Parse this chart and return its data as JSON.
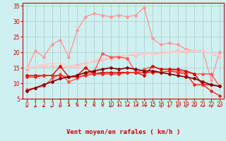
{
  "bg_color": "#cff0f0",
  "grid_color": "#b0c8c8",
  "xlabel": "Vent moyen/en rafales ( km/h )",
  "xlim": [
    -0.5,
    23.5
  ],
  "ylim": [
    5,
    36
  ],
  "yticks": [
    5,
    10,
    15,
    20,
    25,
    30,
    35
  ],
  "xticks": [
    0,
    1,
    2,
    3,
    4,
    5,
    6,
    7,
    8,
    9,
    10,
    11,
    12,
    13,
    14,
    15,
    16,
    17,
    18,
    19,
    20,
    21,
    22,
    23
  ],
  "lines": [
    {
      "x": [
        0,
        1,
        2,
        3,
        4,
        5,
        6,
        7,
        8,
        9,
        10,
        11,
        12,
        13,
        14,
        15,
        16,
        17,
        18,
        19,
        20,
        21,
        22,
        23
      ],
      "y": [
        14.5,
        15.5,
        15.5,
        15.5,
        15.0,
        15.5,
        16.0,
        16.5,
        17.0,
        17.5,
        18.0,
        18.5,
        19.0,
        19.0,
        19.5,
        19.5,
        20.0,
        20.0,
        20.5,
        20.0,
        20.5,
        20.5,
        19.5,
        18.5
      ],
      "color": "#ffbbbb",
      "lw": 1.0,
      "marker": "D",
      "ms": 2.0
    },
    {
      "x": [
        0,
        1,
        2,
        3,
        4,
        5,
        6,
        7,
        8,
        9,
        10,
        11,
        12,
        13,
        14,
        15,
        16,
        17,
        18,
        19,
        20,
        21,
        22,
        23
      ],
      "y": [
        14.5,
        20.5,
        18.5,
        22.5,
        24.0,
        18.5,
        27.0,
        31.5,
        32.5,
        32.0,
        31.5,
        32.0,
        31.5,
        32.0,
        34.5,
        24.5,
        22.5,
        23.0,
        22.5,
        21.0,
        20.5,
        20.5,
        11.0,
        20.0
      ],
      "color": "#ff9999",
      "lw": 1.0,
      "marker": "D",
      "ms": 2.0
    },
    {
      "x": [
        0,
        1,
        2,
        3,
        4,
        5,
        6,
        7,
        8,
        9,
        10,
        11,
        12,
        13,
        14,
        15,
        16,
        17,
        18,
        19,
        20,
        21,
        22,
        23
      ],
      "y": [
        15.0,
        15.5,
        16.0,
        16.5,
        16.5,
        15.5,
        15.0,
        16.0,
        17.5,
        18.0,
        18.5,
        19.0,
        19.0,
        19.5,
        19.5,
        19.5,
        19.5,
        20.0,
        20.0,
        20.5,
        20.5,
        20.5,
        19.5,
        19.0
      ],
      "color": "#ffcccc",
      "lw": 1.0,
      "marker": "D",
      "ms": 2.0
    },
    {
      "x": [
        0,
        1,
        2,
        3,
        4,
        5,
        6,
        7,
        8,
        9,
        10,
        11,
        12,
        13,
        14,
        15,
        16,
        17,
        18,
        19,
        20,
        21,
        22,
        23
      ],
      "y": [
        8.0,
        8.5,
        9.0,
        11.5,
        13.0,
        10.5,
        11.5,
        13.0,
        13.5,
        19.5,
        18.5,
        18.5,
        18.0,
        13.5,
        14.5,
        15.5,
        14.5,
        14.5,
        14.0,
        13.5,
        13.0,
        13.0,
        13.0,
        9.0
      ],
      "color": "#ff5555",
      "lw": 1.0,
      "marker": "D",
      "ms": 2.0
    },
    {
      "x": [
        0,
        1,
        2,
        3,
        4,
        5,
        6,
        7,
        8,
        9,
        10,
        11,
        12,
        13,
        14,
        15,
        16,
        17,
        18,
        19,
        20,
        21,
        22,
        23
      ],
      "y": [
        12.5,
        12.5,
        12.5,
        12.5,
        15.5,
        12.0,
        12.5,
        15.0,
        13.0,
        13.5,
        13.5,
        13.5,
        13.5,
        13.5,
        12.5,
        15.5,
        14.5,
        14.5,
        14.5,
        14.0,
        13.0,
        9.5,
        9.5,
        9.0
      ],
      "color": "#dd0000",
      "lw": 1.0,
      "marker": "D",
      "ms": 2.0
    },
    {
      "x": [
        0,
        1,
        2,
        3,
        4,
        5,
        6,
        7,
        8,
        9,
        10,
        11,
        12,
        13,
        14,
        15,
        16,
        17,
        18,
        19,
        20,
        21,
        22,
        23
      ],
      "y": [
        12.0,
        12.0,
        12.5,
        12.5,
        12.5,
        12.0,
        12.0,
        12.5,
        13.0,
        13.0,
        13.0,
        13.0,
        13.5,
        13.5,
        13.5,
        13.5,
        13.5,
        14.0,
        13.5,
        13.0,
        9.5,
        9.5,
        7.5,
        6.0
      ],
      "color": "#ff2222",
      "lw": 1.0,
      "marker": "D",
      "ms": 2.0
    },
    {
      "x": [
        0,
        1,
        2,
        3,
        4,
        5,
        6,
        7,
        8,
        9,
        10,
        11,
        12,
        13,
        14,
        15,
        16,
        17,
        18,
        19,
        20,
        21,
        22,
        23
      ],
      "y": [
        7.5,
        8.5,
        9.5,
        10.5,
        11.5,
        12.0,
        12.5,
        13.5,
        14.0,
        14.5,
        15.0,
        14.5,
        15.0,
        14.5,
        14.0,
        14.0,
        13.5,
        13.0,
        12.5,
        12.0,
        11.5,
        10.5,
        9.5,
        9.0
      ],
      "color": "#880000",
      "lw": 1.2,
      "marker": "D",
      "ms": 2.0
    }
  ],
  "arrows": [
    "←",
    "←",
    "←",
    "←",
    "←",
    "↖",
    "↖",
    "↖",
    "↖",
    "↖",
    "←",
    "↑",
    "↗",
    "↗",
    "↘",
    "↘",
    "↓",
    "↓",
    "↓",
    "↓",
    "↙",
    "↙",
    "↓",
    "↙"
  ],
  "tick_color": "#cc0000",
  "axis_color": "#cc0000",
  "label_color": "#cc0000"
}
